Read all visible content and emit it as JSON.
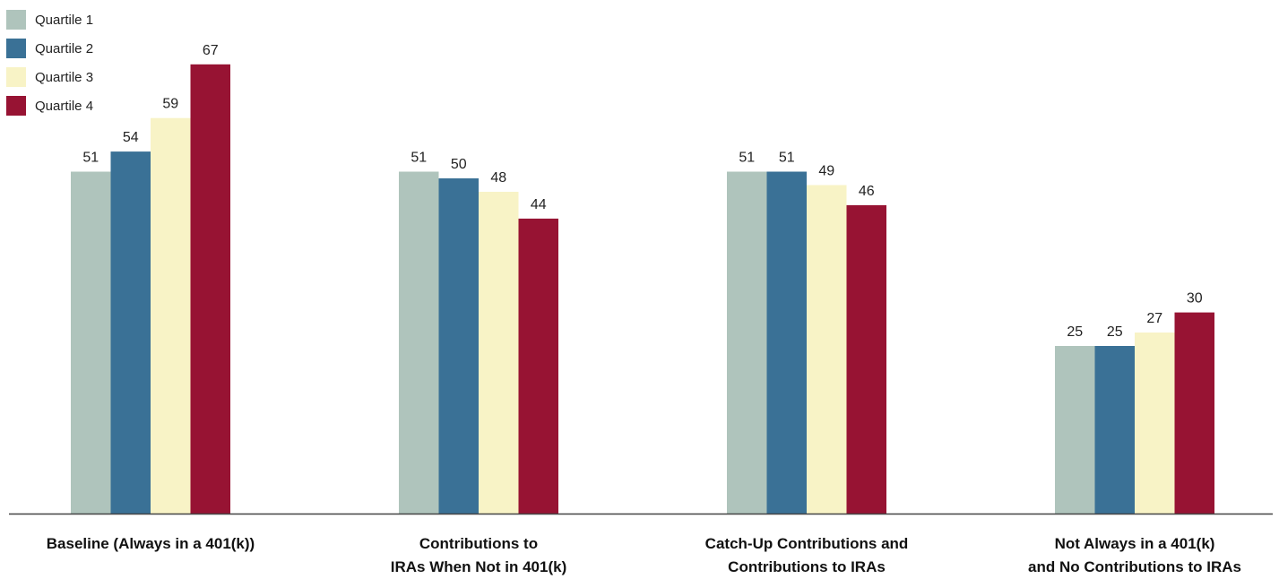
{
  "chart_data": {
    "type": "bar",
    "categories": [
      [
        "Baseline (Always in a 401(k))"
      ],
      [
        "Contributions to",
        "IRAs When Not in 401(k)"
      ],
      [
        "Catch-Up Contributions and",
        "Contributions to IRAs"
      ],
      [
        "Not Always in a 401(k)",
        "and No Contributions to IRAs"
      ]
    ],
    "series": [
      {
        "name": "Quartile 1",
        "color": "#afc4bc",
        "values": [
          51,
          51,
          51,
          25
        ]
      },
      {
        "name": "Quartile 2",
        "color": "#3a7196",
        "values": [
          54,
          50,
          51,
          25
        ]
      },
      {
        "name": "Quartile 3",
        "color": "#f8f3c6",
        "values": [
          59,
          48,
          49,
          27
        ]
      },
      {
        "name": "Quartile 4",
        "color": "#971333",
        "values": [
          67,
          44,
          46,
          30
        ]
      }
    ],
    "data_labels": true,
    "legend_position": "top-left",
    "grid": false
  }
}
